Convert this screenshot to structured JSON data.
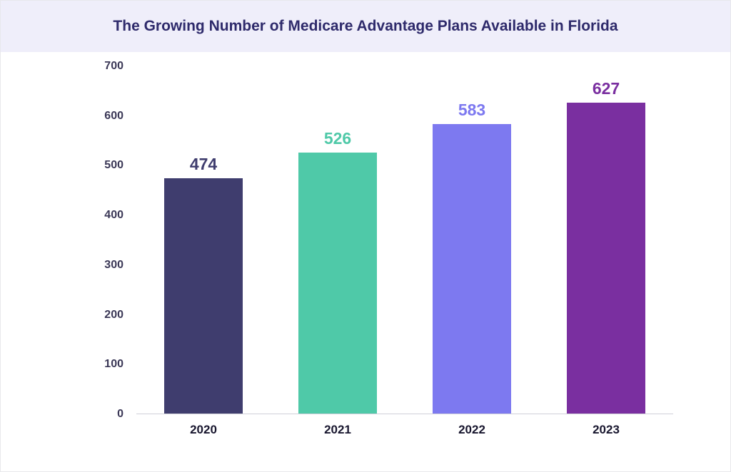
{
  "chart": {
    "type": "bar",
    "title": "The Growing Number of Medicare Advantage Plans Available in Florida",
    "title_color": "#2e2a6b",
    "title_bg": "#efeefa",
    "title_fontsize": 21,
    "categories": [
      "2020",
      "2021",
      "2022",
      "2023"
    ],
    "values": [
      474,
      526,
      583,
      627
    ],
    "bar_colors": [
      "#3f3d6e",
      "#4fc9a8",
      "#7d79f0",
      "#7a2fa0"
    ],
    "label_colors": [
      "#3f3d6e",
      "#4fc9a8",
      "#7d79f0",
      "#7a2fa0"
    ],
    "ylim": [
      0,
      700
    ],
    "ytick_step": 100,
    "yticks": [
      0,
      100,
      200,
      300,
      400,
      500,
      600,
      700
    ],
    "axis_text_color": "#3a3756",
    "x_label_color": "#18162e",
    "background_color": "#ffffff",
    "border_color": "#e8e8ec",
    "bar_width_pct": 58,
    "value_label_fontsize": 23,
    "axis_label_fontsize": 16,
    "x_label_fontsize": 17
  }
}
